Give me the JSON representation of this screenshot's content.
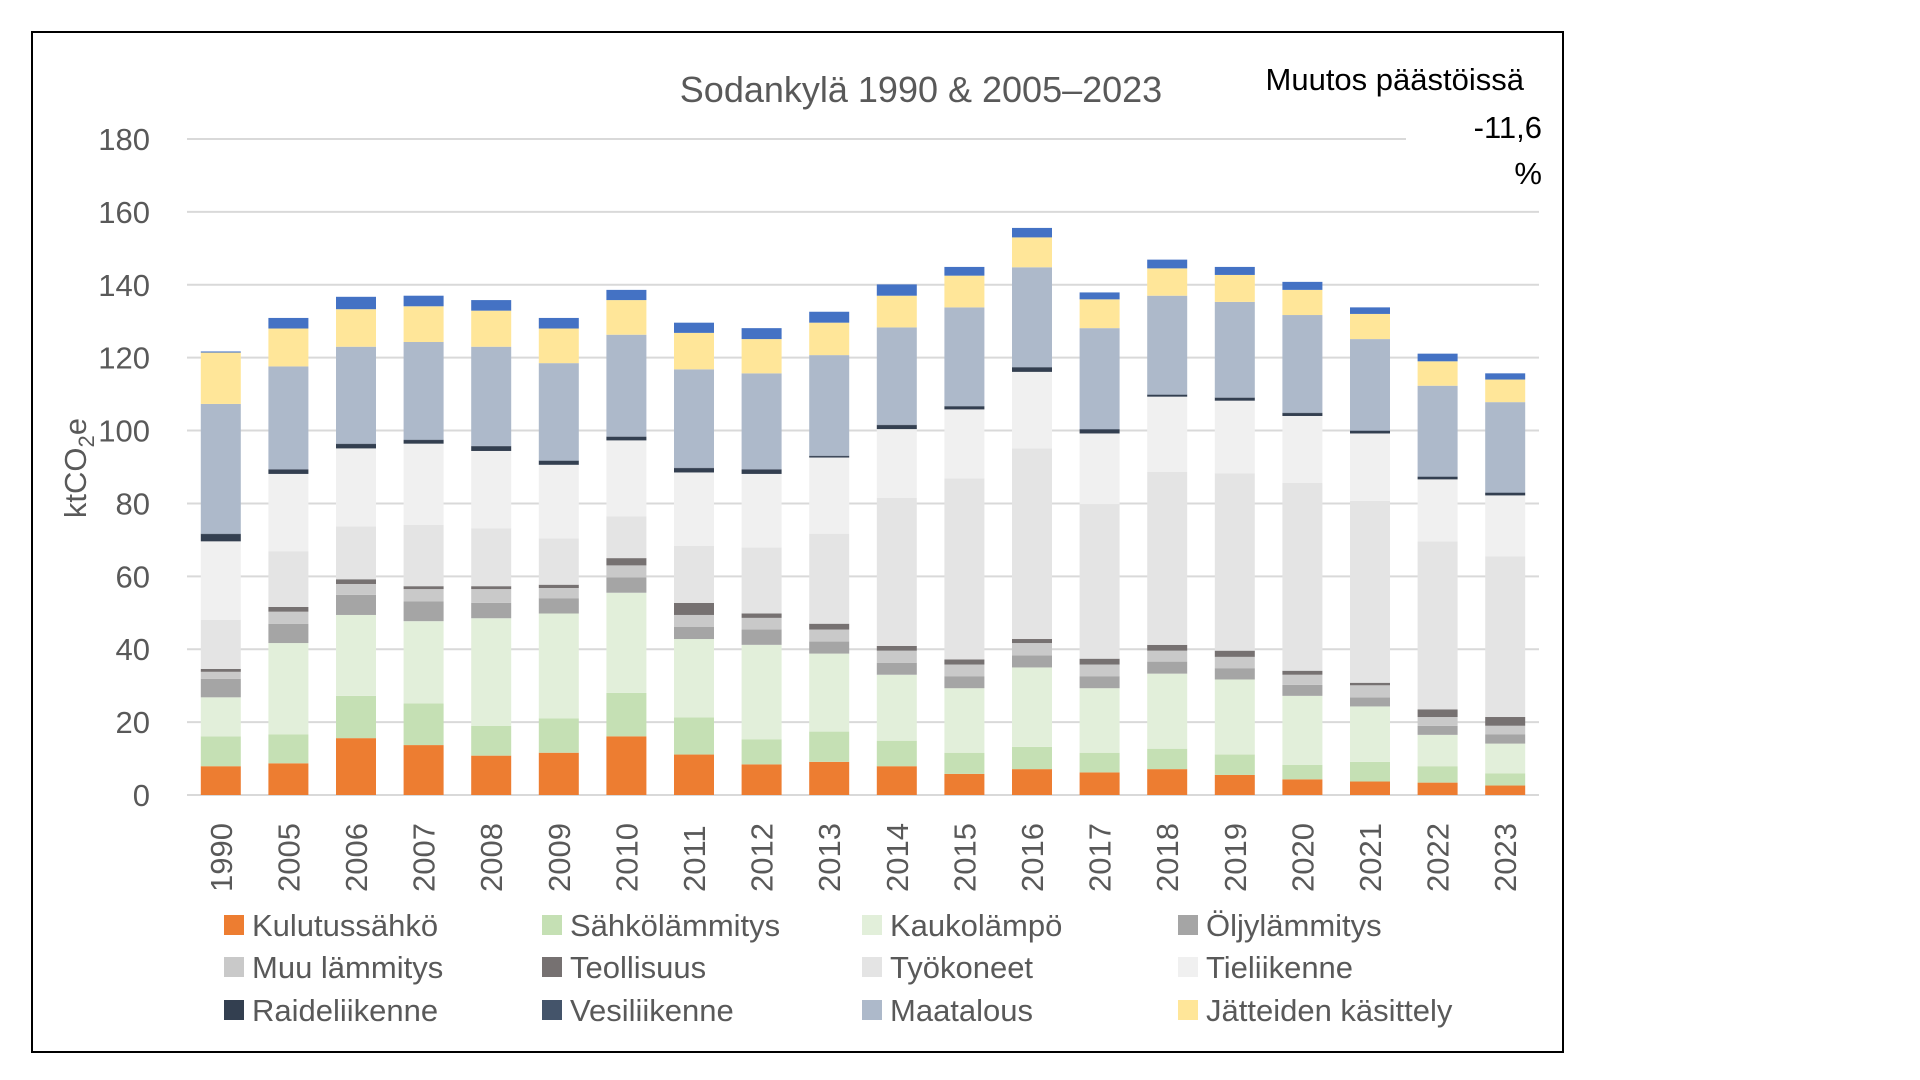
{
  "chart_data": {
    "type": "bar",
    "stacked": true,
    "title": "Sodankylä 1990 & 2005–2023",
    "ylabel": "ktCO2e",
    "ylabel_parts": {
      "main": "ktCO",
      "sub": "2",
      "tail": "e"
    },
    "ylim": [
      0,
      180
    ],
    "yticks": [
      0,
      20,
      40,
      60,
      80,
      100,
      120,
      140,
      160,
      180
    ],
    "grid": true,
    "legend_position": "bottom",
    "annotation": {
      "line1": "Muutos päästöissä",
      "line2": "-11,6",
      "line3": "%"
    },
    "categories": [
      "1990",
      "2005",
      "2006",
      "2007",
      "2008",
      "2009",
      "2010",
      "2011",
      "2012",
      "2013",
      "2014",
      "2015",
      "2016",
      "2017",
      "2018",
      "2019",
      "2020",
      "2021",
      "2022",
      "2023"
    ],
    "series": [
      {
        "name": "Kulutussähkö",
        "color": "#ED7D31",
        "values": [
          7.9,
          8.7,
          15.6,
          13.7,
          10.8,
          11.6,
          16.1,
          11.1,
          8.4,
          9.1,
          7.9,
          5.8,
          7.1,
          6.2,
          7.1,
          5.5,
          4.3,
          3.7,
          3.4,
          2.6
        ]
      },
      {
        "name": "Sähkölämmitys",
        "color": "#C5E0B4",
        "values": [
          8.2,
          7.9,
          11.6,
          11.4,
          8.2,
          9.4,
          11.9,
          10.2,
          6.9,
          8.3,
          7.0,
          5.8,
          6.1,
          5.4,
          5.6,
          5.6,
          4.0,
          5.4,
          4.5,
          3.3
        ]
      },
      {
        "name": "Kaukolämpö",
        "color": "#E2EFDA",
        "values": [
          10.7,
          25.1,
          22.2,
          22.6,
          29.5,
          28.8,
          27.5,
          21.5,
          25.9,
          21.4,
          18.1,
          17.7,
          21.8,
          17.7,
          20.6,
          20.6,
          18.9,
          15.2,
          8.6,
          8.2
        ]
      },
      {
        "name": "Öljylämmitys",
        "color": "#A5A5A5",
        "values": [
          5.1,
          5.3,
          5.5,
          5.4,
          4.2,
          4.2,
          4.2,
          3.3,
          4.2,
          3.3,
          3.3,
          3.3,
          3.3,
          3.3,
          3.3,
          3.1,
          3.0,
          2.5,
          2.5,
          2.5
        ]
      },
      {
        "name": "Muu lämmitys",
        "color": "#C9C9C9",
        "values": [
          1.9,
          3.3,
          3.0,
          3.4,
          3.8,
          2.8,
          3.3,
          3.3,
          3.2,
          3.3,
          3.3,
          3.2,
          3.4,
          3.2,
          3.0,
          3.1,
          2.8,
          3.3,
          2.4,
          2.4
        ]
      },
      {
        "name": "Teollisuus",
        "color": "#767171",
        "values": [
          0.8,
          1.3,
          1.3,
          0.8,
          0.8,
          0.9,
          2.0,
          3.3,
          1.2,
          1.6,
          1.3,
          1.4,
          1.1,
          1.6,
          1.6,
          1.7,
          1.1,
          0.7,
          2.1,
          2.4
        ]
      },
      {
        "name": "Työkoneet",
        "color": "#E4E4E4",
        "values": [
          13.5,
          15.3,
          14.5,
          16.8,
          15.9,
          12.7,
          11.5,
          15.7,
          18.1,
          24.7,
          40.6,
          49.7,
          52.3,
          42.4,
          47.5,
          48.7,
          51.5,
          49.9,
          46.1,
          44.1
        ]
      },
      {
        "name": "Tieliikenne",
        "color": "#F0F0F0",
        "values": [
          21.5,
          21.2,
          21.4,
          22.3,
          21.2,
          20.2,
          20.8,
          20.1,
          20.2,
          20.9,
          18.9,
          18.9,
          21.0,
          19.4,
          20.6,
          19.9,
          18.4,
          18.5,
          17.0,
          16.7
        ]
      },
      {
        "name": "Raideliikenne",
        "color": "#333F50",
        "values": [
          2.0,
          1.2,
          1.2,
          1.0,
          1.3,
          1.1,
          1.0,
          1.2,
          1.2,
          0.4,
          1.1,
          0.8,
          1.2,
          1.1,
          0.5,
          0.8,
          0.8,
          0.7,
          0.7,
          0.7
        ]
      },
      {
        "name": "Vesiliikenne",
        "color": "#44546A",
        "values": [
          0.1,
          0.1,
          0.1,
          0.1,
          0.1,
          0.1,
          0.1,
          0.1,
          0.1,
          0.1,
          0.1,
          0.1,
          0.1,
          0.1,
          0.1,
          0.1,
          0.1,
          0.1,
          0.1,
          0.1
        ]
      },
      {
        "name": "Maatalous",
        "color": "#ADB9CA",
        "values": [
          35.6,
          28.2,
          26.6,
          26.8,
          27.2,
          26.7,
          27.9,
          27.0,
          26.3,
          27.6,
          26.7,
          27.1,
          27.4,
          27.7,
          27.1,
          26.2,
          26.8,
          25.1,
          24.9,
          24.8
        ]
      },
      {
        "name": "Jätteiden käsittely",
        "color": "#FFE699",
        "values": [
          14.1,
          10.4,
          10.3,
          9.8,
          9.9,
          9.5,
          9.5,
          10.0,
          9.4,
          8.9,
          8.7,
          8.7,
          8.2,
          7.9,
          7.5,
          7.4,
          6.9,
          6.9,
          6.7,
          6.2
        ]
      },
      {
        "color": "#4472C4",
        "values": [
          0.3,
          2.9,
          3.4,
          2.9,
          2.9,
          2.9,
          2.8,
          2.8,
          3.0,
          3.0,
          3.1,
          2.4,
          2.6,
          1.9,
          2.4,
          2.2,
          2.2,
          1.8,
          2.1,
          1.7
        ]
      }
    ]
  }
}
